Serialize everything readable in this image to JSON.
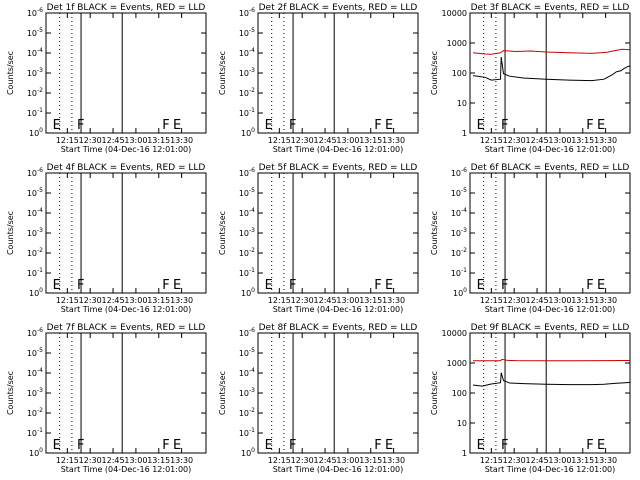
{
  "chart_data": [
    {
      "type": "line",
      "title": "Det 1f BLACK = Events, RED = LLD",
      "xlabel": "Start Time (04-Dec-16 12:01:00)",
      "ylabel": "Counts/sec",
      "log_y": true,
      "yticks": [
        "10<sup>0</sup>",
        "10<sup>-1</sup>",
        "10<sup>-2</sup>",
        "10<sup>-3</sup>",
        "10<sup>-4</sup>",
        "10<sup>-5</sup>",
        "10<sup>-6</sup>"
      ],
      "xticks": [
        "12:15",
        "12:30",
        "12:45",
        "13:00",
        "13:15",
        "13:30"
      ],
      "markers": [
        {
          "t": "E",
          "x": "12:04"
        },
        {
          "t": "F",
          "x": "12:20"
        },
        {
          "t": "F",
          "x": "13:16"
        },
        {
          "t": "E",
          "x": "13:23"
        }
      ],
      "series": []
    },
    {
      "type": "line",
      "title": "Det 2f BLACK = Events, RED = LLD",
      "xlabel": "Start Time (04-Dec-16 12:01:00)",
      "ylabel": "Counts/sec",
      "log_y": true,
      "yticks": [
        "10<sup>0</sup>",
        "10<sup>-1</sup>",
        "10<sup>-2</sup>",
        "10<sup>-3</sup>",
        "10<sup>-4</sup>",
        "10<sup>-5</sup>",
        "10<sup>-6</sup>"
      ],
      "xticks": [
        "12:15",
        "12:30",
        "12:45",
        "13:00",
        "13:15",
        "13:30"
      ],
      "markers": [
        {
          "t": "E",
          "x": "12:04"
        },
        {
          "t": "F",
          "x": "12:20"
        },
        {
          "t": "F",
          "x": "13:16"
        },
        {
          "t": "E",
          "x": "13:23"
        }
      ],
      "series": []
    },
    {
      "type": "line",
      "title": "Det 3f BLACK = Events, RED = LLD",
      "xlabel": "Start Time (04-Dec-16 12:01:00)",
      "ylabel": "Counts/sec",
      "log_y": true,
      "yticks": [
        "1",
        "10",
        "100",
        "1000",
        "10000"
      ],
      "xticks": [
        "12:15",
        "12:30",
        "12:45",
        "13:00",
        "13:15",
        "13:30"
      ],
      "markers": [
        {
          "t": "E",
          "x": "12:04"
        },
        {
          "t": "F",
          "x": "12:20"
        },
        {
          "t": "F",
          "x": "13:16"
        },
        {
          "t": "E",
          "x": "13:23"
        }
      ],
      "series": [
        {
          "color": "#000000",
          "x": [
            2,
            10,
            14,
            20,
            20.5,
            22,
            26,
            35,
            50,
            65,
            80,
            88,
            93,
            96,
            99,
            101,
            103,
            105
          ],
          "values": [
            82,
            72,
            58,
            62,
            340,
            95,
            78,
            68,
            62,
            58,
            56,
            62,
            85,
            110,
            118,
            140,
            160,
            175
          ]
        },
        {
          "color": "#cc0000",
          "x": [
            2,
            10,
            14,
            20,
            22,
            30,
            40,
            50,
            65,
            80,
            90,
            95,
            100,
            105
          ],
          "values": [
            470,
            430,
            420,
            470,
            560,
            520,
            540,
            500,
            470,
            450,
            490,
            560,
            620,
            600
          ]
        }
      ]
    },
    {
      "type": "line",
      "title": "Det 4f BLACK = Events, RED = LLD",
      "xlabel": "Start Time (04-Dec-16 12:01:00)",
      "ylabel": "Counts/sec",
      "log_y": true,
      "yticks": [
        "10<sup>0</sup>",
        "10<sup>-1</sup>",
        "10<sup>-2</sup>",
        "10<sup>-3</sup>",
        "10<sup>-4</sup>",
        "10<sup>-5</sup>",
        "10<sup>-6</sup>"
      ],
      "xticks": [
        "12:15",
        "12:30",
        "12:45",
        "13:00",
        "13:15",
        "13:30"
      ],
      "markers": [
        {
          "t": "E",
          "x": "12:04"
        },
        {
          "t": "F",
          "x": "12:20"
        },
        {
          "t": "F",
          "x": "13:16"
        },
        {
          "t": "E",
          "x": "13:23"
        }
      ],
      "series": []
    },
    {
      "type": "line",
      "title": "Det 5f BLACK = Events, RED = LLD",
      "xlabel": "Start Time (04-Dec-16 12:01:00)",
      "ylabel": "Counts/sec",
      "log_y": true,
      "yticks": [
        "10<sup>0</sup>",
        "10<sup>-1</sup>",
        "10<sup>-2</sup>",
        "10<sup>-3</sup>",
        "10<sup>-4</sup>",
        "10<sup>-5</sup>",
        "10<sup>-6</sup>"
      ],
      "xticks": [
        "12:15",
        "12:30",
        "12:45",
        "13:00",
        "13:15",
        "13:30"
      ],
      "markers": [
        {
          "t": "E",
          "x": "12:04"
        },
        {
          "t": "F",
          "x": "12:20"
        },
        {
          "t": "F",
          "x": "13:16"
        },
        {
          "t": "E",
          "x": "13:23"
        }
      ],
      "series": []
    },
    {
      "type": "line",
      "title": "Det 6f BLACK = Events, RED = LLD",
      "xlabel": "Start Time (04-Dec-16 12:01:00)",
      "ylabel": "Counts/sec",
      "log_y": true,
      "yticks": [
        "10<sup>0</sup>",
        "10<sup>-1</sup>",
        "10<sup>-2</sup>",
        "10<sup>-3</sup>",
        "10<sup>-4</sup>",
        "10<sup>-5</sup>",
        "10<sup>-6</sup>"
      ],
      "xticks": [
        "12:15",
        "12:30",
        "12:45",
        "13:00",
        "13:15",
        "13:30"
      ],
      "markers": [
        {
          "t": "E",
          "x": "12:04"
        },
        {
          "t": "F",
          "x": "12:20"
        },
        {
          "t": "F",
          "x": "13:16"
        },
        {
          "t": "E",
          "x": "13:23"
        }
      ],
      "series": []
    },
    {
      "type": "line",
      "title": "Det 7f BLACK = Events, RED = LLD",
      "xlabel": "Start Time (04-Dec-16 12:01:00)",
      "ylabel": "Counts/sec",
      "log_y": true,
      "yticks": [
        "10<sup>0</sup>",
        "10<sup>-1</sup>",
        "10<sup>-2</sup>",
        "10<sup>-3</sup>",
        "10<sup>-4</sup>",
        "10<sup>-5</sup>",
        "10<sup>-6</sup>"
      ],
      "xticks": [
        "12:15",
        "12:30",
        "12:45",
        "13:00",
        "13:15",
        "13:30"
      ],
      "markers": [
        {
          "t": "E",
          "x": "12:04"
        },
        {
          "t": "F",
          "x": "12:20"
        },
        {
          "t": "F",
          "x": "13:16"
        },
        {
          "t": "E",
          "x": "13:23"
        }
      ],
      "series": []
    },
    {
      "type": "line",
      "title": "Det 8f BLACK = Events, RED = LLD",
      "xlabel": "Start Time (04-Dec-16 12:01:00)",
      "ylabel": "Counts/sec",
      "log_y": true,
      "yticks": [
        "10<sup>0</sup>",
        "10<sup>-1</sup>",
        "10<sup>-2</sup>",
        "10<sup>-3</sup>",
        "10<sup>-4</sup>",
        "10<sup>-5</sup>",
        "10<sup>-6</sup>"
      ],
      "xticks": [
        "12:15",
        "12:30",
        "12:45",
        "13:00",
        "13:15",
        "13:30"
      ],
      "markers": [
        {
          "t": "E",
          "x": "12:04"
        },
        {
          "t": "F",
          "x": "12:20"
        },
        {
          "t": "F",
          "x": "13:16"
        },
        {
          "t": "E",
          "x": "13:23"
        }
      ],
      "series": []
    },
    {
      "type": "line",
      "title": "Det 9f BLACK = Events, RED = LLD",
      "xlabel": "Start Time (04-Dec-16 12:01:00)",
      "ylabel": "Counts/sec",
      "log_y": true,
      "yticks": [
        "1",
        "10",
        "100",
        "1000",
        "10000"
      ],
      "xticks": [
        "12:15",
        "12:30",
        "12:45",
        "13:00",
        "13:15",
        "13:30"
      ],
      "markers": [
        {
          "t": "E",
          "x": "12:04"
        },
        {
          "t": "F",
          "x": "12:20"
        },
        {
          "t": "F",
          "x": "13:16"
        },
        {
          "t": "E",
          "x": "13:23"
        }
      ],
      "series": [
        {
          "color": "#000000",
          "x": [
            2,
            8,
            14,
            20,
            20.5,
            22,
            26,
            35,
            50,
            65,
            80,
            88,
            93,
            96,
            99,
            102,
            105
          ],
          "values": [
            185,
            170,
            200,
            220,
            480,
            260,
            215,
            205,
            195,
            190,
            190,
            195,
            205,
            210,
            215,
            220,
            225
          ]
        },
        {
          "color": "#cc0000",
          "x": [
            2,
            10,
            20,
            21,
            24,
            30,
            50,
            70,
            90,
            100,
            105
          ],
          "values": [
            1180,
            1180,
            1180,
            1330,
            1230,
            1200,
            1190,
            1190,
            1200,
            1210,
            1210
          ]
        }
      ]
    }
  ]
}
